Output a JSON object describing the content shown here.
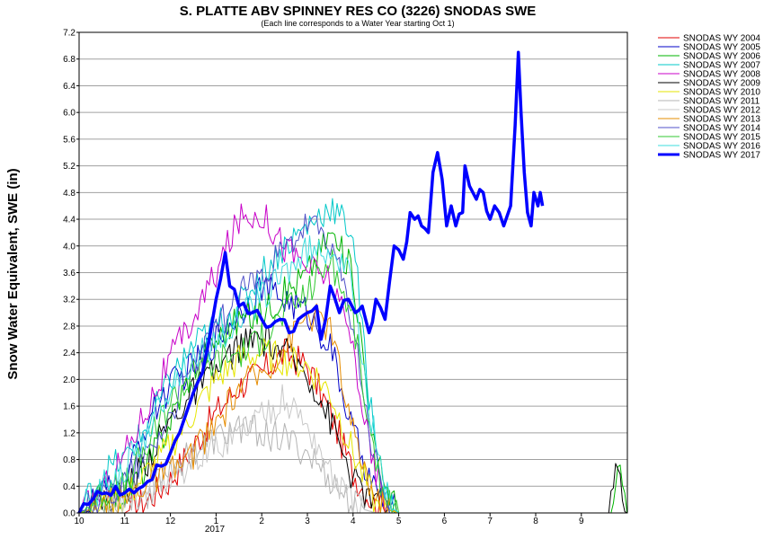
{
  "chart_data": {
    "type": "line",
    "title": "S. PLATTE ABV SPINNEY RES CO (3226) SNODAS SWE",
    "subtitle": "(Each line corresponds to a Water Year starting Oct 1)",
    "ylabel": "Snow Water Equivalent, SWE (in)",
    "xlabel": "",
    "ylim": [
      0,
      7.2
    ],
    "yticks": [
      "0.0",
      "0.4",
      "0.8",
      "1.2",
      "1.6",
      "2.0",
      "2.4",
      "2.8",
      "3.2",
      "3.6",
      "4.0",
      "4.4",
      "4.8",
      "5.2",
      "5.6",
      "6.0",
      "6.4",
      "6.8",
      "7.2"
    ],
    "xlim": [
      0,
      12
    ],
    "xticks": [
      "10",
      "11",
      "12",
      "1",
      "2",
      "3",
      "4",
      "5",
      "6",
      "7",
      "8",
      "9"
    ],
    "x_sublabel": "2017",
    "grid": true,
    "legend_position": "right",
    "series": [
      {
        "name": "SNODAS WY 2004",
        "color": "#e00000",
        "width": 1,
        "points": [
          [
            0,
            0
          ],
          [
            1.0,
            0
          ],
          [
            1.5,
            0.2
          ],
          [
            2.0,
            0.5
          ],
          [
            2.5,
            1.0
          ],
          [
            3.0,
            1.5
          ],
          [
            3.5,
            1.9
          ],
          [
            4.0,
            2.1
          ],
          [
            4.5,
            2.4
          ],
          [
            5.0,
            2.2
          ],
          [
            5.5,
            1.5
          ],
          [
            6.0,
            0.6
          ],
          [
            6.5,
            0.1
          ],
          [
            7.0,
            0.0
          ],
          [
            12,
            0
          ]
        ]
      },
      {
        "name": "SNODAS WY 2005",
        "color": "#0000c8",
        "width": 1,
        "points": [
          [
            0,
            0
          ],
          [
            0.5,
            0.3
          ],
          [
            1.0,
            0.4
          ],
          [
            1.5,
            1.4
          ],
          [
            2.0,
            1.9
          ],
          [
            2.5,
            2.2
          ],
          [
            3.0,
            2.6
          ],
          [
            3.5,
            3.0
          ],
          [
            4.0,
            3.4
          ],
          [
            4.5,
            3.2
          ],
          [
            5.0,
            3.0
          ],
          [
            5.5,
            2.5
          ],
          [
            6.0,
            1.2
          ],
          [
            6.5,
            0.3
          ],
          [
            7.0,
            0.0
          ],
          [
            12,
            0
          ]
        ]
      },
      {
        "name": "SNODAS WY 2006",
        "color": "#00b400",
        "width": 1,
        "points": [
          [
            0,
            0
          ],
          [
            0.5,
            0.2
          ],
          [
            1.0,
            0.3
          ],
          [
            1.5,
            0.7
          ],
          [
            2.0,
            1.4
          ],
          [
            2.5,
            2.2
          ],
          [
            3.0,
            2.6
          ],
          [
            3.5,
            2.9
          ],
          [
            4.0,
            3.0
          ],
          [
            4.5,
            3.3
          ],
          [
            5.0,
            3.6
          ],
          [
            5.5,
            4.2
          ],
          [
            6.0,
            3.6
          ],
          [
            6.5,
            0.8
          ],
          [
            7.0,
            0.0
          ],
          [
            11.6,
            0
          ],
          [
            11.75,
            0.3
          ],
          [
            11.85,
            0.7
          ],
          [
            12,
            0
          ]
        ]
      },
      {
        "name": "SNODAS WY 2007",
        "color": "#00c8c8",
        "width": 1,
        "points": [
          [
            0,
            0
          ],
          [
            0.5,
            0.6
          ],
          [
            1.0,
            0.8
          ],
          [
            1.5,
            1.3
          ],
          [
            2.0,
            2.0
          ],
          [
            2.5,
            2.5
          ],
          [
            3.0,
            2.8
          ],
          [
            3.5,
            3.1
          ],
          [
            4.0,
            3.6
          ],
          [
            4.5,
            4.0
          ],
          [
            5.0,
            4.3
          ],
          [
            5.5,
            4.6
          ],
          [
            6.0,
            4.2
          ],
          [
            6.3,
            2.0
          ],
          [
            6.7,
            0.2
          ],
          [
            7.0,
            0.0
          ],
          [
            12,
            0
          ]
        ]
      },
      {
        "name": "SNODAS WY 2008",
        "color": "#c800c8",
        "width": 1,
        "points": [
          [
            0,
            0
          ],
          [
            0.5,
            0.3
          ],
          [
            1.0,
            0.9
          ],
          [
            1.5,
            1.6
          ],
          [
            2.0,
            2.3
          ],
          [
            2.5,
            2.9
          ],
          [
            3.0,
            3.6
          ],
          [
            3.5,
            4.4
          ],
          [
            4.0,
            4.5
          ],
          [
            4.5,
            4.0
          ],
          [
            5.0,
            3.7
          ],
          [
            5.5,
            3.5
          ],
          [
            6.0,
            2.5
          ],
          [
            6.4,
            0.8
          ],
          [
            6.8,
            0.0
          ],
          [
            12,
            0
          ]
        ]
      },
      {
        "name": "SNODAS WY 2009",
        "color": "#000000",
        "width": 1,
        "points": [
          [
            0,
            0
          ],
          [
            0.5,
            0.2
          ],
          [
            1.0,
            0.3
          ],
          [
            1.5,
            0.8
          ],
          [
            2.0,
            1.4
          ],
          [
            2.5,
            1.8
          ],
          [
            3.0,
            2.1
          ],
          [
            3.5,
            2.5
          ],
          [
            4.0,
            2.6
          ],
          [
            4.5,
            2.4
          ],
          [
            5.0,
            2.1
          ],
          [
            5.5,
            1.4
          ],
          [
            6.0,
            0.5
          ],
          [
            6.5,
            0.1
          ],
          [
            7.0,
            0.0
          ],
          [
            11.6,
            0
          ],
          [
            11.7,
            0.4
          ],
          [
            11.8,
            0.6
          ],
          [
            11.9,
            0.3
          ],
          [
            12,
            0
          ]
        ]
      },
      {
        "name": "SNODAS WY 2010",
        "color": "#e6e600",
        "width": 1,
        "points": [
          [
            0,
            0
          ],
          [
            0.5,
            0.1
          ],
          [
            1.0,
            0.2
          ],
          [
            1.5,
            0.6
          ],
          [
            2.0,
            1.0
          ],
          [
            2.5,
            1.5
          ],
          [
            3.0,
            2.0
          ],
          [
            3.5,
            2.3
          ],
          [
            4.0,
            2.4
          ],
          [
            4.5,
            2.3
          ],
          [
            5.0,
            2.2
          ],
          [
            5.5,
            1.8
          ],
          [
            6.0,
            0.9
          ],
          [
            6.5,
            0.1
          ],
          [
            7.0,
            0.0
          ],
          [
            12,
            0
          ]
        ]
      },
      {
        "name": "SNODAS WY 2011",
        "color": "#b4b4b4",
        "width": 1,
        "points": [
          [
            0,
            0
          ],
          [
            0.5,
            0.1
          ],
          [
            1.0,
            0.2
          ],
          [
            1.5,
            0.3
          ],
          [
            2.0,
            0.7
          ],
          [
            2.5,
            0.9
          ],
          [
            3.0,
            1.1
          ],
          [
            3.5,
            1.3
          ],
          [
            4.0,
            1.2
          ],
          [
            4.5,
            1.1
          ],
          [
            5.0,
            0.9
          ],
          [
            5.5,
            0.5
          ],
          [
            6.0,
            0.1
          ],
          [
            6.5,
            0.0
          ],
          [
            12,
            0
          ]
        ]
      },
      {
        "name": "SNODAS WY 2012",
        "color": "#c8c8c8",
        "width": 1,
        "points": [
          [
            0,
            0
          ],
          [
            0.5,
            0.1
          ],
          [
            1.0,
            0.2
          ],
          [
            1.5,
            0.4
          ],
          [
            2.0,
            0.5
          ],
          [
            2.5,
            0.8
          ],
          [
            3.0,
            1.0
          ],
          [
            3.5,
            1.2
          ],
          [
            4.0,
            1.5
          ],
          [
            4.5,
            1.7
          ],
          [
            5.0,
            1.3
          ],
          [
            5.5,
            0.6
          ],
          [
            6.0,
            0.1
          ],
          [
            6.5,
            0.0
          ],
          [
            12,
            0
          ]
        ]
      },
      {
        "name": "SNODAS WY 2013",
        "color": "#e68c00",
        "width": 1,
        "points": [
          [
            0,
            0
          ],
          [
            0.5,
            0.1
          ],
          [
            1.0,
            0.2
          ],
          [
            1.5,
            0.5
          ],
          [
            2.0,
            0.6
          ],
          [
            2.5,
            0.9
          ],
          [
            3.0,
            1.3
          ],
          [
            3.5,
            1.9
          ],
          [
            4.0,
            2.1
          ],
          [
            4.5,
            2.5
          ],
          [
            5.0,
            3.0
          ],
          [
            5.5,
            2.8
          ],
          [
            6.0,
            1.2
          ],
          [
            6.5,
            0.2
          ],
          [
            7.0,
            0.0
          ],
          [
            12,
            0
          ]
        ]
      },
      {
        "name": "SNODAS WY 2014",
        "color": "#5050c8",
        "width": 1,
        "points": [
          [
            0,
            0
          ],
          [
            0.5,
            0.2
          ],
          [
            1.0,
            0.5
          ],
          [
            1.5,
            0.9
          ],
          [
            2.0,
            1.5
          ],
          [
            2.5,
            2.2
          ],
          [
            3.0,
            2.7
          ],
          [
            3.5,
            3.3
          ],
          [
            4.0,
            3.6
          ],
          [
            4.5,
            3.9
          ],
          [
            5.0,
            4.3
          ],
          [
            5.5,
            4.1
          ],
          [
            6.0,
            2.8
          ],
          [
            6.4,
            1.0
          ],
          [
            6.8,
            0.0
          ],
          [
            12,
            0
          ]
        ]
      },
      {
        "name": "SNODAS WY 2015",
        "color": "#32c832",
        "width": 1,
        "points": [
          [
            0,
            0
          ],
          [
            0.5,
            0.3
          ],
          [
            1.0,
            0.4
          ],
          [
            1.5,
            1.0
          ],
          [
            2.0,
            1.7
          ],
          [
            2.5,
            2.0
          ],
          [
            3.0,
            2.3
          ],
          [
            3.5,
            2.4
          ],
          [
            4.0,
            2.6
          ],
          [
            4.5,
            3.0
          ],
          [
            5.0,
            3.3
          ],
          [
            5.5,
            3.8
          ],
          [
            6.0,
            2.9
          ],
          [
            6.5,
            0.6
          ],
          [
            7.0,
            0.0
          ],
          [
            12,
            0
          ]
        ]
      },
      {
        "name": "SNODAS WY 2016",
        "color": "#3cdcdc",
        "width": 1,
        "points": [
          [
            0,
            0
          ],
          [
            0.5,
            0.4
          ],
          [
            1.0,
            0.7
          ],
          [
            1.5,
            1.2
          ],
          [
            2.0,
            1.9
          ],
          [
            2.5,
            2.3
          ],
          [
            3.0,
            2.6
          ],
          [
            3.5,
            2.9
          ],
          [
            4.0,
            3.2
          ],
          [
            4.5,
            3.6
          ],
          [
            5.0,
            3.9
          ],
          [
            5.5,
            4.0
          ],
          [
            6.0,
            3.4
          ],
          [
            6.4,
            1.4
          ],
          [
            6.8,
            0.1
          ],
          [
            7.0,
            0.0
          ],
          [
            12,
            0
          ]
        ]
      },
      {
        "name": "SNODAS WY 2017",
        "color": "#0000ff",
        "width": 3.5,
        "points": [
          [
            0,
            0
          ],
          [
            0.3,
            0.2
          ],
          [
            0.6,
            0.3
          ],
          [
            1.0,
            0.3
          ],
          [
            1.2,
            0.3
          ],
          [
            1.4,
            0.4
          ],
          [
            1.6,
            0.5
          ],
          [
            1.8,
            0.7
          ],
          [
            2.0,
            0.9
          ],
          [
            2.2,
            1.2
          ],
          [
            2.35,
            1.5
          ],
          [
            2.5,
            1.8
          ],
          [
            2.7,
            2.1
          ],
          [
            2.85,
            2.6
          ],
          [
            3.0,
            3.2
          ],
          [
            3.2,
            3.9
          ],
          [
            3.3,
            3.4
          ],
          [
            3.5,
            3.1
          ],
          [
            3.8,
            3.0
          ],
          [
            4.0,
            2.9
          ],
          [
            4.2,
            2.8
          ],
          [
            4.4,
            2.9
          ],
          [
            4.6,
            2.7
          ],
          [
            4.8,
            2.9
          ],
          [
            5.0,
            3.0
          ],
          [
            5.2,
            3.1
          ],
          [
            5.3,
            2.6
          ],
          [
            5.5,
            3.4
          ],
          [
            5.7,
            3.0
          ],
          [
            5.9,
            3.2
          ],
          [
            6.05,
            3.0
          ],
          [
            6.2,
            3.1
          ],
          [
            6.35,
            2.7
          ],
          [
            6.5,
            3.2
          ],
          [
            6.7,
            2.9
          ],
          [
            6.9,
            4.0
          ],
          [
            7.1,
            3.8
          ],
          [
            7.25,
            4.5
          ],
          [
            7.35,
            4.4
          ],
          [
            7.5,
            4.3
          ],
          [
            7.65,
            4.2
          ],
          [
            7.75,
            5.1
          ],
          [
            7.85,
            5.4
          ],
          [
            7.95,
            5.0
          ],
          [
            8.05,
            4.3
          ],
          [
            8.15,
            4.6
          ],
          [
            8.25,
            4.3
          ],
          [
            8.4,
            4.5
          ],
          [
            8.45,
            5.2
          ],
          [
            8.55,
            4.9
          ],
          [
            8.7,
            4.7
          ],
          [
            8.85,
            4.8
          ],
          [
            9.0,
            4.4
          ],
          [
            9.1,
            4.6
          ],
          [
            9.2,
            4.5
          ],
          [
            9.3,
            4.3
          ],
          [
            9.45,
            4.6
          ],
          [
            9.55,
            5.8
          ],
          [
            9.62,
            6.9
          ],
          [
            9.68,
            6.0
          ],
          [
            9.75,
            5.1
          ],
          [
            9.82,
            4.5
          ],
          [
            9.9,
            4.3
          ],
          [
            9.96,
            4.8
          ],
          [
            10.05,
            4.6
          ],
          [
            10.1,
            4.8
          ],
          [
            10.15,
            4.6
          ]
        ]
      }
    ]
  }
}
